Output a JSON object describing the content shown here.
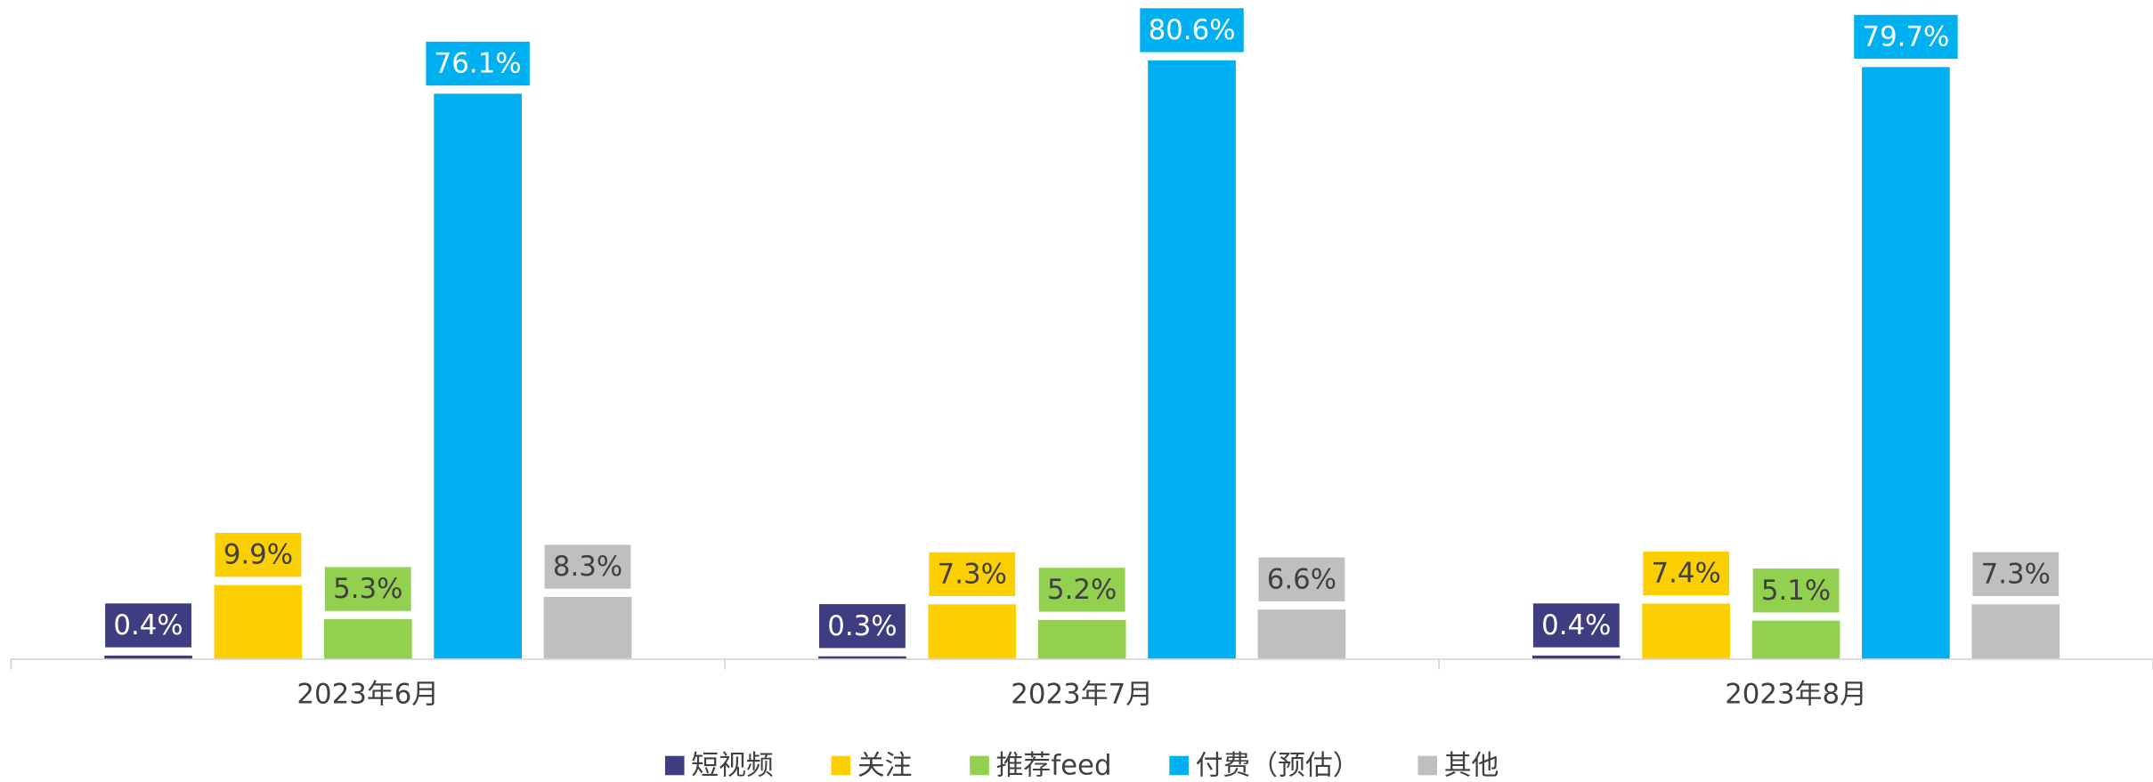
{
  "chart_data": {
    "type": "bar",
    "categories": [
      "2023年6月",
      "2023年7月",
      "2023年8月"
    ],
    "series": [
      {
        "name": "短视频",
        "color": "#3f3d82",
        "values": [
          0.4,
          0.3,
          0.4
        ],
        "value_labels": [
          "0.4%",
          "0.3%",
          "0.4%"
        ]
      },
      {
        "name": "关注",
        "color": "#fcd000",
        "values": [
          9.9,
          7.3,
          7.4
        ],
        "value_labels": [
          "9.9%",
          "7.3%",
          "7.4%"
        ]
      },
      {
        "name": "推荐feed",
        "color": "#92d050",
        "values": [
          5.3,
          5.2,
          5.1
        ],
        "value_labels": [
          "5.3%",
          "5.2%",
          "5.1%"
        ]
      },
      {
        "name": "付费（预估）",
        "color": "#00b0f0",
        "values": [
          76.1,
          80.6,
          79.7
        ],
        "value_labels": [
          "76.1%",
          "80.6%",
          "79.7%"
        ]
      },
      {
        "name": "其他",
        "color": "#bfbfbf",
        "values": [
          8.3,
          6.6,
          7.3
        ],
        "value_labels": [
          "8.3%",
          "6.6%",
          "7.3%"
        ]
      }
    ],
    "legend": "bottom"
  }
}
